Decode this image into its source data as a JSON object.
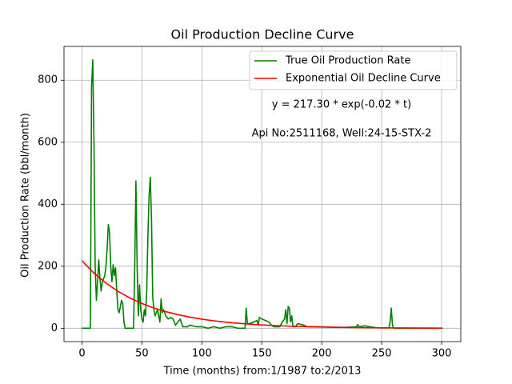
{
  "chart_data": {
    "type": "line",
    "title": "Oil Production Decline Curve",
    "xlabel": "Time (months) from:1/1987 to:2/2013",
    "ylabel": "Oil Production Rate (bbl/month)",
    "annotations": [
      "y = 217.30 * exp(-0.02 * t)",
      "Api No:2511168, Well:24-15-STX-2"
    ],
    "xlim": [
      -15,
      316
    ],
    "ylim": [
      -43,
      909
    ],
    "xticks": [
      0,
      50,
      100,
      150,
      200,
      250,
      300
    ],
    "yticks": [
      0,
      200,
      400,
      600,
      800
    ],
    "grid": true,
    "legend": "upper right",
    "series": [
      {
        "name": "True Oil Production Rate",
        "color": "#008000",
        "x": [
          0,
          7,
          8,
          9,
          10,
          11,
          12,
          13,
          14,
          15,
          16,
          17,
          18,
          19,
          20,
          21,
          22,
          23,
          24,
          25,
          26,
          27,
          28,
          29,
          30,
          31,
          32,
          33,
          34,
          35,
          36,
          40,
          43,
          44,
          45,
          46,
          47,
          48,
          49,
          50,
          51,
          52,
          53,
          54,
          55,
          56,
          57,
          58,
          59,
          60,
          61,
          62,
          63,
          64,
          65,
          66,
          67,
          68,
          70,
          72,
          74,
          76,
          78,
          80,
          82,
          84,
          88,
          90,
          95,
          100,
          105,
          110,
          115,
          120,
          125,
          130,
          136,
          137,
          138,
          140,
          143,
          146,
          147,
          148,
          150,
          153,
          156,
          158,
          160,
          165,
          167,
          169,
          170,
          171,
          172,
          173,
          174,
          175,
          176,
          178,
          180,
          185,
          188,
          195,
          200,
          210,
          220,
          229,
          230,
          231,
          236,
          240,
          245,
          250,
          256,
          257,
          258,
          259,
          260,
          280,
          301
        ],
        "values": [
          0,
          0,
          780,
          866,
          600,
          200,
          90,
          150,
          220,
          160,
          120,
          150,
          160,
          170,
          200,
          260,
          335,
          310,
          200,
          150,
          205,
          170,
          195,
          120,
          60,
          50,
          70,
          90,
          80,
          20,
          0,
          0,
          0,
          200,
          475,
          200,
          40,
          140,
          60,
          30,
          20,
          60,
          40,
          120,
          300,
          430,
          487,
          350,
          100,
          60,
          40,
          50,
          60,
          40,
          20,
          95,
          50,
          60,
          40,
          30,
          35,
          30,
          10,
          20,
          30,
          5,
          5,
          10,
          5,
          5,
          0,
          5,
          0,
          5,
          5,
          0,
          0,
          65,
          15,
          15,
          20,
          25,
          10,
          35,
          30,
          25,
          20,
          10,
          5,
          5,
          20,
          30,
          60,
          15,
          70,
          65,
          20,
          40,
          5,
          5,
          15,
          10,
          5,
          5,
          5,
          3,
          3,
          5,
          12,
          5,
          8,
          5,
          2,
          1,
          1,
          20,
          65,
          10,
          0,
          0,
          0
        ]
      },
      {
        "name": "Exponential Oil Decline Curve",
        "color": "#ff0000",
        "x": [
          0,
          10,
          20,
          30,
          40,
          50,
          60,
          70,
          80,
          90,
          100,
          110,
          120,
          130,
          140,
          150,
          160,
          170,
          180,
          190,
          200,
          210,
          220,
          230,
          240,
          250,
          260,
          270,
          280,
          290,
          300
        ],
        "values": [
          217.3,
          177.9,
          145.7,
          119.3,
          97.6,
          79.9,
          65.4,
          53.6,
          43.9,
          35.9,
          29.4,
          24.1,
          19.7,
          16.2,
          13.2,
          10.8,
          8.9,
          7.3,
          5.9,
          4.9,
          4.0,
          3.3,
          2.7,
          2.2,
          1.8,
          1.5,
          1.2,
          1.0,
          0.8,
          0.7,
          0.5
        ]
      }
    ]
  }
}
